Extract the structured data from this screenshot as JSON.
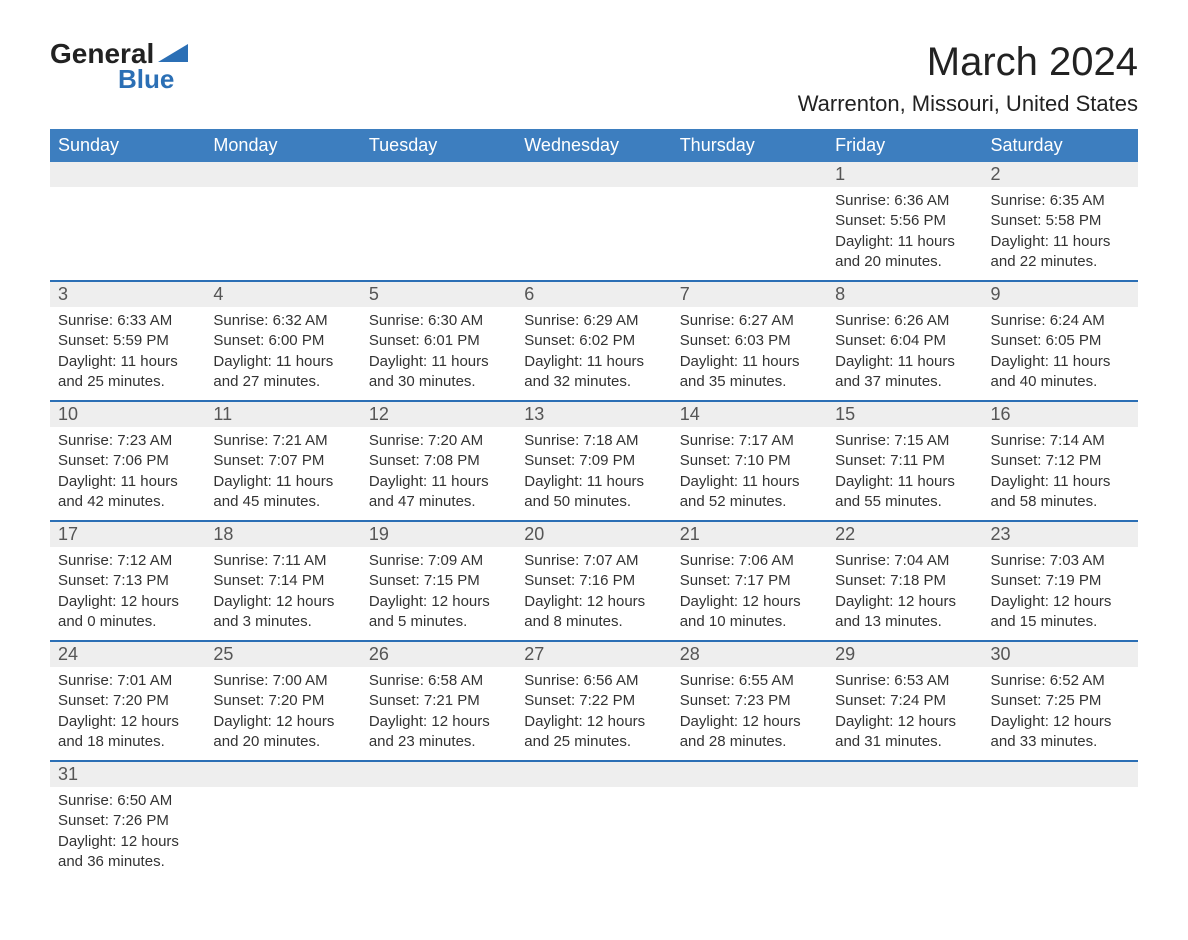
{
  "brand": {
    "name1": "General",
    "name2": "Blue",
    "logo_color": "#2b6fb5"
  },
  "title": "March 2024",
  "location": "Warrenton, Missouri, United States",
  "colors": {
    "header_bg": "#3d7ebf",
    "header_text": "#ffffff",
    "daynum_bg": "#eeeeee",
    "row_divider": "#2b6fb5",
    "body_text": "#333333"
  },
  "weekdays": [
    "Sunday",
    "Monday",
    "Tuesday",
    "Wednesday",
    "Thursday",
    "Friday",
    "Saturday"
  ],
  "weeks": [
    [
      null,
      null,
      null,
      null,
      null,
      {
        "day": "1",
        "sunrise": "Sunrise: 6:36 AM",
        "sunset": "Sunset: 5:56 PM",
        "daylight1": "Daylight: 11 hours",
        "daylight2": "and 20 minutes."
      },
      {
        "day": "2",
        "sunrise": "Sunrise: 6:35 AM",
        "sunset": "Sunset: 5:58 PM",
        "daylight1": "Daylight: 11 hours",
        "daylight2": "and 22 minutes."
      }
    ],
    [
      {
        "day": "3",
        "sunrise": "Sunrise: 6:33 AM",
        "sunset": "Sunset: 5:59 PM",
        "daylight1": "Daylight: 11 hours",
        "daylight2": "and 25 minutes."
      },
      {
        "day": "4",
        "sunrise": "Sunrise: 6:32 AM",
        "sunset": "Sunset: 6:00 PM",
        "daylight1": "Daylight: 11 hours",
        "daylight2": "and 27 minutes."
      },
      {
        "day": "5",
        "sunrise": "Sunrise: 6:30 AM",
        "sunset": "Sunset: 6:01 PM",
        "daylight1": "Daylight: 11 hours",
        "daylight2": "and 30 minutes."
      },
      {
        "day": "6",
        "sunrise": "Sunrise: 6:29 AM",
        "sunset": "Sunset: 6:02 PM",
        "daylight1": "Daylight: 11 hours",
        "daylight2": "and 32 minutes."
      },
      {
        "day": "7",
        "sunrise": "Sunrise: 6:27 AM",
        "sunset": "Sunset: 6:03 PM",
        "daylight1": "Daylight: 11 hours",
        "daylight2": "and 35 minutes."
      },
      {
        "day": "8",
        "sunrise": "Sunrise: 6:26 AM",
        "sunset": "Sunset: 6:04 PM",
        "daylight1": "Daylight: 11 hours",
        "daylight2": "and 37 minutes."
      },
      {
        "day": "9",
        "sunrise": "Sunrise: 6:24 AM",
        "sunset": "Sunset: 6:05 PM",
        "daylight1": "Daylight: 11 hours",
        "daylight2": "and 40 minutes."
      }
    ],
    [
      {
        "day": "10",
        "sunrise": "Sunrise: 7:23 AM",
        "sunset": "Sunset: 7:06 PM",
        "daylight1": "Daylight: 11 hours",
        "daylight2": "and 42 minutes."
      },
      {
        "day": "11",
        "sunrise": "Sunrise: 7:21 AM",
        "sunset": "Sunset: 7:07 PM",
        "daylight1": "Daylight: 11 hours",
        "daylight2": "and 45 minutes."
      },
      {
        "day": "12",
        "sunrise": "Sunrise: 7:20 AM",
        "sunset": "Sunset: 7:08 PM",
        "daylight1": "Daylight: 11 hours",
        "daylight2": "and 47 minutes."
      },
      {
        "day": "13",
        "sunrise": "Sunrise: 7:18 AM",
        "sunset": "Sunset: 7:09 PM",
        "daylight1": "Daylight: 11 hours",
        "daylight2": "and 50 minutes."
      },
      {
        "day": "14",
        "sunrise": "Sunrise: 7:17 AM",
        "sunset": "Sunset: 7:10 PM",
        "daylight1": "Daylight: 11 hours",
        "daylight2": "and 52 minutes."
      },
      {
        "day": "15",
        "sunrise": "Sunrise: 7:15 AM",
        "sunset": "Sunset: 7:11 PM",
        "daylight1": "Daylight: 11 hours",
        "daylight2": "and 55 minutes."
      },
      {
        "day": "16",
        "sunrise": "Sunrise: 7:14 AM",
        "sunset": "Sunset: 7:12 PM",
        "daylight1": "Daylight: 11 hours",
        "daylight2": "and 58 minutes."
      }
    ],
    [
      {
        "day": "17",
        "sunrise": "Sunrise: 7:12 AM",
        "sunset": "Sunset: 7:13 PM",
        "daylight1": "Daylight: 12 hours",
        "daylight2": "and 0 minutes."
      },
      {
        "day": "18",
        "sunrise": "Sunrise: 7:11 AM",
        "sunset": "Sunset: 7:14 PM",
        "daylight1": "Daylight: 12 hours",
        "daylight2": "and 3 minutes."
      },
      {
        "day": "19",
        "sunrise": "Sunrise: 7:09 AM",
        "sunset": "Sunset: 7:15 PM",
        "daylight1": "Daylight: 12 hours",
        "daylight2": "and 5 minutes."
      },
      {
        "day": "20",
        "sunrise": "Sunrise: 7:07 AM",
        "sunset": "Sunset: 7:16 PM",
        "daylight1": "Daylight: 12 hours",
        "daylight2": "and 8 minutes."
      },
      {
        "day": "21",
        "sunrise": "Sunrise: 7:06 AM",
        "sunset": "Sunset: 7:17 PM",
        "daylight1": "Daylight: 12 hours",
        "daylight2": "and 10 minutes."
      },
      {
        "day": "22",
        "sunrise": "Sunrise: 7:04 AM",
        "sunset": "Sunset: 7:18 PM",
        "daylight1": "Daylight: 12 hours",
        "daylight2": "and 13 minutes."
      },
      {
        "day": "23",
        "sunrise": "Sunrise: 7:03 AM",
        "sunset": "Sunset: 7:19 PM",
        "daylight1": "Daylight: 12 hours",
        "daylight2": "and 15 minutes."
      }
    ],
    [
      {
        "day": "24",
        "sunrise": "Sunrise: 7:01 AM",
        "sunset": "Sunset: 7:20 PM",
        "daylight1": "Daylight: 12 hours",
        "daylight2": "and 18 minutes."
      },
      {
        "day": "25",
        "sunrise": "Sunrise: 7:00 AM",
        "sunset": "Sunset: 7:20 PM",
        "daylight1": "Daylight: 12 hours",
        "daylight2": "and 20 minutes."
      },
      {
        "day": "26",
        "sunrise": "Sunrise: 6:58 AM",
        "sunset": "Sunset: 7:21 PM",
        "daylight1": "Daylight: 12 hours",
        "daylight2": "and 23 minutes."
      },
      {
        "day": "27",
        "sunrise": "Sunrise: 6:56 AM",
        "sunset": "Sunset: 7:22 PM",
        "daylight1": "Daylight: 12 hours",
        "daylight2": "and 25 minutes."
      },
      {
        "day": "28",
        "sunrise": "Sunrise: 6:55 AM",
        "sunset": "Sunset: 7:23 PM",
        "daylight1": "Daylight: 12 hours",
        "daylight2": "and 28 minutes."
      },
      {
        "day": "29",
        "sunrise": "Sunrise: 6:53 AM",
        "sunset": "Sunset: 7:24 PM",
        "daylight1": "Daylight: 12 hours",
        "daylight2": "and 31 minutes."
      },
      {
        "day": "30",
        "sunrise": "Sunrise: 6:52 AM",
        "sunset": "Sunset: 7:25 PM",
        "daylight1": "Daylight: 12 hours",
        "daylight2": "and 33 minutes."
      }
    ],
    [
      {
        "day": "31",
        "sunrise": "Sunrise: 6:50 AM",
        "sunset": "Sunset: 7:26 PM",
        "daylight1": "Daylight: 12 hours",
        "daylight2": "and 36 minutes."
      },
      null,
      null,
      null,
      null,
      null,
      null
    ]
  ]
}
